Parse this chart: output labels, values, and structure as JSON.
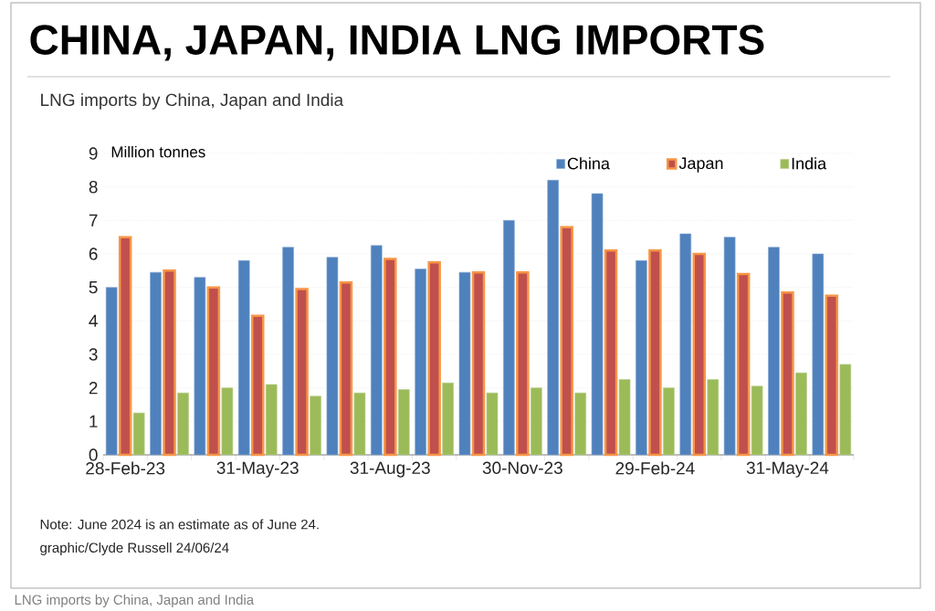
{
  "chart_data": {
    "type": "bar",
    "title": "CHINA, JAPAN, INDIA LNG IMPORTS",
    "subtitle": "LNG imports by China, Japan and India",
    "ylabel": "Million tonnes",
    "categories": [
      "28-Feb-23",
      null,
      null,
      "31-May-23",
      null,
      null,
      "31-Aug-23",
      null,
      null,
      "30-Nov-23",
      null,
      null,
      "29-Feb-24",
      null,
      null,
      "31-May-24",
      null
    ],
    "series": [
      {
        "name": "China",
        "color": "#4f81bd",
        "values": [
          5.0,
          5.45,
          5.3,
          5.8,
          6.2,
          5.9,
          6.25,
          5.55,
          5.45,
          7.0,
          8.2,
          7.8,
          5.8,
          6.6,
          6.5,
          6.2,
          6.0
        ]
      },
      {
        "name": "Japan",
        "color": "#c0504d",
        "values": [
          6.5,
          5.5,
          5.0,
          4.15,
          4.95,
          5.15,
          5.85,
          5.75,
          5.45,
          5.45,
          6.8,
          6.1,
          6.1,
          6.0,
          5.4,
          4.85,
          4.75
        ]
      },
      {
        "name": "India",
        "color": "#9bbb59",
        "values": [
          1.25,
          1.85,
          2.0,
          2.1,
          1.75,
          1.85,
          1.95,
          2.15,
          1.85,
          2.0,
          1.85,
          2.25,
          2.0,
          2.25,
          2.05,
          2.45,
          2.7
        ]
      }
    ],
    "ylim": [
      0,
      9
    ],
    "yticks": [
      0,
      1,
      2,
      3,
      4,
      5,
      6,
      7,
      8,
      9
    ],
    "grid": "y",
    "legend": "top right",
    "annotations": [
      "Note: June 2024 is an estimate as of June 24.",
      "graphic/Clyde Russell 24/06/24",
      "LNG imports by China, Japan and India"
    ]
  }
}
